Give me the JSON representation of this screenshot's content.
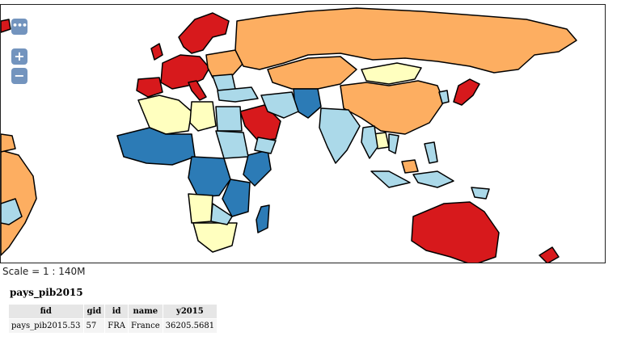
{
  "map": {
    "layer": "pays_pib2015",
    "scale_text": "Scale = 1 : 140M",
    "legend_colors": {
      "very_high": "#d7191c",
      "high": "#fdae61",
      "medium": "#ffffbf",
      "low": "#abd9e9",
      "very_low": "#2c7bb6"
    },
    "controls": {
      "menu_label": "•••",
      "zoom_in_label": "+",
      "zoom_out_label": "−"
    }
  },
  "attribute_table": {
    "title": "pays_pib2015",
    "columns": [
      "fid",
      "gid",
      "id",
      "name",
      "y2015"
    ],
    "rows": [
      [
        "pays_pib2015.53",
        "57",
        "FRA",
        "France",
        "36205.5681"
      ]
    ]
  }
}
